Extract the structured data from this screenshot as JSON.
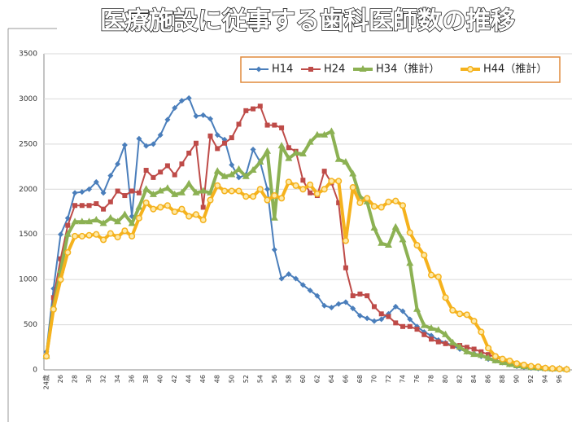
{
  "chart_data": {
    "type": "line",
    "title": "医療施設に従事する歯科医師数の推移",
    "categories": [
      "24歳",
      null,
      "26",
      null,
      "28",
      null,
      "30",
      null,
      "32",
      null,
      "34",
      null,
      "36",
      null,
      "38",
      null,
      "40",
      null,
      "42",
      null,
      "44",
      null,
      "46",
      null,
      "48",
      null,
      "50",
      null,
      "52",
      null,
      "54",
      null,
      "56",
      null,
      "58",
      null,
      "60",
      null,
      "62",
      null,
      "64",
      null,
      "66",
      null,
      "68",
      null,
      "70",
      null,
      "72",
      null,
      "74",
      null,
      "76",
      null,
      "78",
      null,
      "80",
      null,
      "82",
      null,
      "84",
      null,
      "86",
      null,
      "88",
      null,
      "90",
      null,
      "92",
      null,
      "94",
      null,
      "96",
      null
    ],
    "series": [
      {
        "name": "H14",
        "color": "#4a7ebb",
        "marker": "diamond",
        "values": [
          200,
          900,
          1500,
          1680,
          1960,
          1970,
          2000,
          2080,
          1960,
          2150,
          2280,
          2490,
          1700,
          2560,
          2480,
          2500,
          2600,
          2770,
          2900,
          2980,
          3010,
          2810,
          2820,
          2780,
          2600,
          2550,
          2270,
          2130,
          2160,
          2440,
          2300,
          2000,
          1330,
          1010,
          1060,
          1010,
          940,
          880,
          820,
          710,
          690,
          730,
          750,
          680,
          600,
          570,
          540,
          560,
          620,
          700,
          650,
          560,
          480,
          420,
          380,
          330,
          300,
          270,
          230,
          200,
          180,
          150,
          120,
          100,
          80,
          60,
          40,
          30,
          20,
          15,
          10,
          5,
          5,
          0
        ]
      },
      {
        "name": "H24",
        "color": "#be4b48",
        "marker": "square",
        "values": [
          150,
          800,
          1230,
          1600,
          1820,
          1820,
          1820,
          1840,
          1780,
          1860,
          1980,
          1930,
          1980,
          1960,
          2210,
          2130,
          2190,
          2260,
          2160,
          2280,
          2400,
          2510,
          1800,
          2590,
          2450,
          2510,
          2570,
          2720,
          2870,
          2890,
          2920,
          2710,
          2710,
          2680,
          2460,
          2420,
          2100,
          1960,
          1930,
          2200,
          2070,
          1850,
          1130,
          820,
          840,
          820,
          700,
          620,
          590,
          520,
          480,
          480,
          450,
          390,
          340,
          310,
          290,
          260,
          270,
          250,
          230,
          200,
          170,
          140,
          110,
          80,
          60,
          45,
          30,
          25,
          15,
          10,
          10,
          5
        ]
      },
      {
        "name": "H34（推計）",
        "color": "#8cb153",
        "marker": "triangle",
        "values": [
          150,
          700,
          1100,
          1500,
          1640,
          1640,
          1640,
          1660,
          1620,
          1680,
          1640,
          1720,
          1620,
          1800,
          2000,
          1940,
          1980,
          2010,
          1940,
          1960,
          2060,
          1960,
          1980,
          1960,
          2200,
          2140,
          2160,
          2220,
          2140,
          2210,
          2300,
          2420,
          1680,
          2480,
          2340,
          2400,
          2390,
          2520,
          2600,
          2600,
          2640,
          2330,
          2300,
          2170,
          1920,
          1860,
          1570,
          1400,
          1380,
          1580,
          1440,
          1180,
          670,
          490,
          460,
          440,
          390,
          300,
          250,
          200,
          170,
          160,
          130,
          100,
          80,
          60,
          45,
          35,
          25,
          20,
          15,
          10,
          10,
          5
        ]
      },
      {
        "name": "H44（推計）",
        "color": "#f5b21d",
        "marker": "circle",
        "values": [
          150,
          670,
          1000,
          1300,
          1480,
          1480,
          1490,
          1500,
          1440,
          1510,
          1470,
          1540,
          1480,
          1680,
          1850,
          1780,
          1800,
          1820,
          1750,
          1780,
          1700,
          1720,
          1660,
          1880,
          2040,
          1980,
          1980,
          1980,
          1920,
          1920,
          2000,
          1880,
          1930,
          1900,
          2080,
          2040,
          2000,
          2050,
          1950,
          2000,
          2090,
          2090,
          1430,
          2020,
          1850,
          1900,
          1810,
          1800,
          1860,
          1870,
          1820,
          1520,
          1380,
          1270,
          1050,
          1030,
          800,
          660,
          620,
          610,
          540,
          420,
          240,
          150,
          120,
          100,
          70,
          55,
          40,
          35,
          20,
          15,
          10,
          5
        ]
      }
    ],
    "ylim": [
      0,
      3500
    ],
    "yticks": [
      0,
      500,
      1000,
      1500,
      2000,
      2500,
      3000,
      3500
    ],
    "grid": true
  }
}
